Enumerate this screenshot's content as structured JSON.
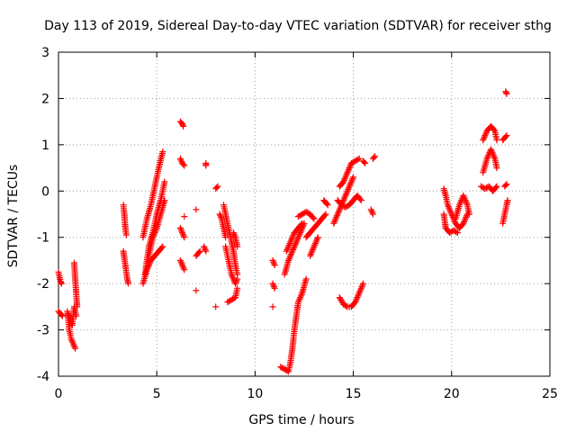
{
  "chart_data": {
    "type": "scatter",
    "title": "Day 113 of 2019, Sidereal Day-to-day VTEC variation (SDTVAR) for receiver sthg",
    "xlabel": "GPS time / hours",
    "ylabel": "SDTVAR / TECUs",
    "xlim": [
      0,
      25
    ],
    "ylim": [
      -4,
      3
    ],
    "xticks": [
      "0",
      "5",
      "10",
      "15",
      "20",
      "25"
    ],
    "yticks": [
      "-4",
      "-3",
      "-2",
      "-1",
      "0",
      "1",
      "2",
      "3"
    ],
    "grid": true,
    "marker": "plus",
    "color": "#ff0000",
    "series": [
      {
        "name": "sthg",
        "segments": [
          [
            [
              0.0,
              -1.75
            ],
            [
              0.1,
              -1.95
            ],
            [
              0.15,
              -2.0
            ]
          ],
          [
            [
              0.0,
              -2.6
            ],
            [
              0.1,
              -2.65
            ],
            [
              0.2,
              -2.7
            ]
          ],
          [
            [
              0.45,
              -2.6
            ],
            [
              0.55,
              -3.0
            ],
            [
              0.65,
              -3.2
            ],
            [
              0.75,
              -3.3
            ],
            [
              0.85,
              -3.4
            ]
          ],
          [
            [
              0.5,
              -2.65
            ],
            [
              0.6,
              -2.8
            ],
            [
              0.7,
              -2.9
            ],
            [
              0.8,
              -2.5
            ],
            [
              0.9,
              -2.7
            ]
          ],
          [
            [
              0.8,
              -1.55
            ],
            [
              0.85,
              -1.9
            ],
            [
              0.9,
              -2.2
            ],
            [
              0.95,
              -2.5
            ]
          ],
          [
            [
              3.3,
              -0.3
            ],
            [
              3.35,
              -0.5
            ],
            [
              3.4,
              -0.8
            ],
            [
              3.45,
              -0.95
            ]
          ],
          [
            [
              3.3,
              -1.3
            ],
            [
              3.4,
              -1.6
            ],
            [
              3.5,
              -1.9
            ],
            [
              3.55,
              -2.0
            ]
          ],
          [
            [
              4.3,
              -2.0
            ],
            [
              4.5,
              -1.7
            ],
            [
              4.7,
              -1.5
            ],
            [
              4.9,
              -1.4
            ],
            [
              5.1,
              -1.3
            ],
            [
              5.3,
              -1.2
            ]
          ],
          [
            [
              4.3,
              -1.0
            ],
            [
              4.5,
              -0.6
            ],
            [
              4.7,
              -0.3
            ],
            [
              4.9,
              0.1
            ],
            [
              5.1,
              0.5
            ],
            [
              5.3,
              0.85
            ]
          ],
          [
            [
              4.4,
              -1.8
            ],
            [
              4.6,
              -1.2
            ],
            [
              4.8,
              -0.9
            ],
            [
              5.0,
              -0.5
            ],
            [
              5.2,
              -0.2
            ],
            [
              5.4,
              0.2
            ]
          ],
          [
            [
              4.6,
              -1.4
            ],
            [
              4.8,
              -1.0
            ],
            [
              5.0,
              -0.8
            ],
            [
              5.2,
              -0.5
            ],
            [
              5.4,
              -0.2
            ]
          ],
          [
            [
              6.2,
              1.5
            ],
            [
              6.3,
              1.45
            ],
            [
              6.35,
              1.4
            ]
          ],
          [
            [
              6.2,
              0.7
            ],
            [
              6.3,
              0.6
            ],
            [
              6.4,
              0.55
            ]
          ],
          [
            [
              6.2,
              -0.8
            ],
            [
              6.3,
              -0.9
            ],
            [
              6.4,
              -1.0
            ]
          ],
          [
            [
              6.2,
              -1.5
            ],
            [
              6.3,
              -1.6
            ],
            [
              6.4,
              -1.7
            ]
          ],
          [
            [
              6.4,
              -0.55
            ]
          ],
          [
            [
              7.0,
              -0.4
            ]
          ],
          [
            [
              7.0,
              -1.4
            ],
            [
              7.2,
              -1.3
            ]
          ],
          [
            [
              7.0,
              -2.15
            ]
          ],
          [
            [
              7.5,
              0.55
            ],
            [
              7.5,
              0.6
            ]
          ],
          [
            [
              7.4,
              -1.2
            ],
            [
              7.5,
              -1.3
            ]
          ],
          [
            [
              8.0,
              0.05
            ],
            [
              8.1,
              0.1
            ]
          ],
          [
            [
              8.0,
              -2.5
            ]
          ],
          [
            [
              8.2,
              -0.5
            ],
            [
              8.3,
              -0.6
            ],
            [
              8.4,
              -0.8
            ],
            [
              8.5,
              -1.0
            ]
          ],
          [
            [
              8.4,
              -0.3
            ],
            [
              8.5,
              -0.5
            ],
            [
              8.6,
              -0.7
            ],
            [
              8.7,
              -0.9
            ],
            [
              8.8,
              -1.1
            ],
            [
              8.9,
              -1.3
            ],
            [
              9.0,
              -1.6
            ],
            [
              9.1,
              -1.8
            ]
          ],
          [
            [
              8.5,
              -1.2
            ],
            [
              8.6,
              -1.4
            ],
            [
              8.7,
              -1.6
            ],
            [
              8.8,
              -1.8
            ],
            [
              9.0,
              -2.0
            ],
            [
              9.1,
              -1.9
            ]
          ],
          [
            [
              8.6,
              -2.4
            ],
            [
              8.8,
              -2.35
            ],
            [
              9.0,
              -2.3
            ],
            [
              9.1,
              -2.1
            ]
          ],
          [
            [
              8.9,
              -0.9
            ],
            [
              9.0,
              -1.0
            ],
            [
              9.1,
              -1.2
            ]
          ],
          [
            [
              10.9,
              -1.5
            ],
            [
              11.0,
              -1.6
            ]
          ],
          [
            [
              10.9,
              -2.0
            ],
            [
              11.0,
              -2.1
            ]
          ],
          [
            [
              10.9,
              -2.5
            ]
          ],
          [
            [
              11.3,
              -3.8
            ],
            [
              11.5,
              -3.85
            ],
            [
              11.7,
              -3.9
            ],
            [
              11.8,
              -3.7
            ],
            [
              11.9,
              -3.4
            ],
            [
              12.0,
              -3.0
            ],
            [
              12.1,
              -2.7
            ],
            [
              12.2,
              -2.4
            ],
            [
              12.4,
              -2.2
            ],
            [
              12.6,
              -1.9
            ]
          ],
          [
            [
              11.5,
              -1.8
            ],
            [
              11.7,
              -1.5
            ],
            [
              11.9,
              -1.3
            ],
            [
              12.1,
              -1.1
            ],
            [
              12.3,
              -0.9
            ],
            [
              12.5,
              -0.7
            ]
          ],
          [
            [
              11.6,
              -1.3
            ],
            [
              11.8,
              -1.1
            ],
            [
              12.0,
              -0.9
            ],
            [
              12.2,
              -0.8
            ],
            [
              12.4,
              -0.7
            ]
          ],
          [
            [
              12.2,
              -0.55
            ],
            [
              12.4,
              -0.5
            ],
            [
              12.6,
              -0.45
            ],
            [
              12.8,
              -0.5
            ],
            [
              13.0,
              -0.6
            ]
          ],
          [
            [
              12.6,
              -1.0
            ],
            [
              12.8,
              -0.9
            ],
            [
              13.0,
              -0.8
            ],
            [
              13.2,
              -0.7
            ],
            [
              13.4,
              -0.6
            ],
            [
              13.6,
              -0.5
            ]
          ],
          [
            [
              12.8,
              -1.4
            ],
            [
              13.0,
              -1.2
            ],
            [
              13.2,
              -1.0
            ]
          ],
          [
            [
              13.5,
              -0.2
            ],
            [
              13.6,
              -0.25
            ],
            [
              13.7,
              -0.3
            ]
          ],
          [
            [
              14.0,
              -0.7
            ],
            [
              14.2,
              -0.5
            ],
            [
              14.4,
              -0.3
            ],
            [
              14.6,
              -0.1
            ],
            [
              14.8,
              0.1
            ],
            [
              15.0,
              0.3
            ]
          ],
          [
            [
              14.2,
              -0.2
            ],
            [
              14.4,
              -0.3
            ],
            [
              14.6,
              -0.35
            ],
            [
              14.8,
              -0.3
            ],
            [
              15.0,
              -0.2
            ],
            [
              15.2,
              -0.1
            ],
            [
              15.4,
              -0.2
            ]
          ],
          [
            [
              14.3,
              0.1
            ],
            [
              14.5,
              0.2
            ],
            [
              14.7,
              0.4
            ],
            [
              14.9,
              0.6
            ],
            [
              15.1,
              0.65
            ],
            [
              15.3,
              0.7
            ]
          ],
          [
            [
              14.3,
              -2.3
            ],
            [
              14.5,
              -2.45
            ],
            [
              14.7,
              -2.5
            ],
            [
              14.9,
              -2.5
            ],
            [
              15.1,
              -2.4
            ],
            [
              15.3,
              -2.2
            ],
            [
              15.5,
              -2.0
            ]
          ],
          [
            [
              15.5,
              0.65
            ],
            [
              15.6,
              0.6
            ]
          ],
          [
            [
              15.9,
              -0.4
            ],
            [
              16.0,
              -0.5
            ]
          ],
          [
            [
              16.0,
              0.7
            ],
            [
              16.1,
              0.75
            ]
          ],
          [
            [
              19.6,
              0.05
            ],
            [
              19.7,
              -0.1
            ],
            [
              19.8,
              -0.3
            ],
            [
              20.0,
              -0.5
            ],
            [
              20.2,
              -0.7
            ],
            [
              20.4,
              -0.8
            ],
            [
              20.6,
              -0.7
            ],
            [
              20.8,
              -0.5
            ]
          ],
          [
            [
              19.6,
              -0.5
            ],
            [
              19.7,
              -0.8
            ],
            [
              19.9,
              -0.9
            ],
            [
              20.1,
              -0.85
            ],
            [
              20.3,
              -0.9
            ]
          ],
          [
            [
              20.2,
              -0.6
            ],
            [
              20.4,
              -0.3
            ],
            [
              20.6,
              -0.1
            ],
            [
              20.8,
              -0.3
            ],
            [
              20.9,
              -0.5
            ]
          ],
          [
            [
              21.6,
              1.1
            ],
            [
              21.8,
              1.3
            ],
            [
              22.0,
              1.4
            ],
            [
              22.2,
              1.3
            ],
            [
              22.3,
              1.1
            ]
          ],
          [
            [
              21.6,
              0.4
            ],
            [
              21.8,
              0.7
            ],
            [
              22.0,
              0.9
            ],
            [
              22.2,
              0.7
            ],
            [
              22.3,
              0.5
            ]
          ],
          [
            [
              21.5,
              0.1
            ],
            [
              21.7,
              0.05
            ],
            [
              21.9,
              0.1
            ],
            [
              22.1,
              0.0
            ],
            [
              22.3,
              0.1
            ]
          ],
          [
            [
              22.6,
              1.1
            ],
            [
              22.7,
              1.15
            ],
            [
              22.8,
              1.2
            ]
          ],
          [
            [
              22.6,
              -0.7
            ],
            [
              22.7,
              -0.5
            ],
            [
              22.8,
              -0.3
            ],
            [
              22.85,
              -0.2
            ]
          ],
          [
            [
              22.7,
              0.1
            ],
            [
              22.8,
              0.15
            ]
          ],
          [
            [
              22.75,
              2.15
            ],
            [
              22.8,
              2.1
            ]
          ]
        ]
      }
    ]
  }
}
